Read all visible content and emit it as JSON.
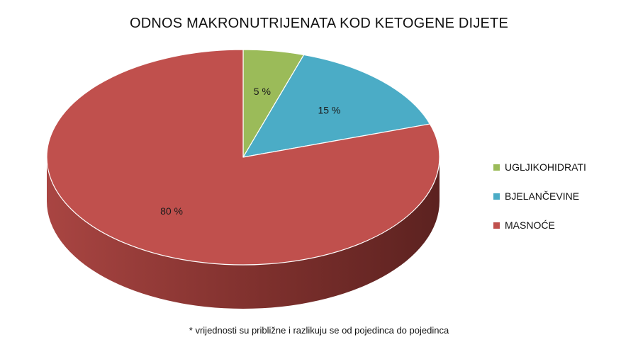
{
  "chart_data": {
    "type": "pie",
    "title": "ODNOS MAKRONUTRIJENATA KOD KETOGENE DIJETE",
    "slices": [
      {
        "name": "UGLJIKOHIDRATI",
        "value": 5,
        "label": "5 %",
        "color": "#9bbb59"
      },
      {
        "name": "BJELANČEVINE",
        "value": 15,
        "label": "15 %",
        "color": "#4bacc6"
      },
      {
        "name": "MASNOĆE",
        "value": 80,
        "label": "80 %",
        "color": "#c0504d"
      }
    ],
    "legend_position": "right",
    "footnote": "* vrijednosti su približne i razlikuju se od pojedinca do pojedinca"
  }
}
